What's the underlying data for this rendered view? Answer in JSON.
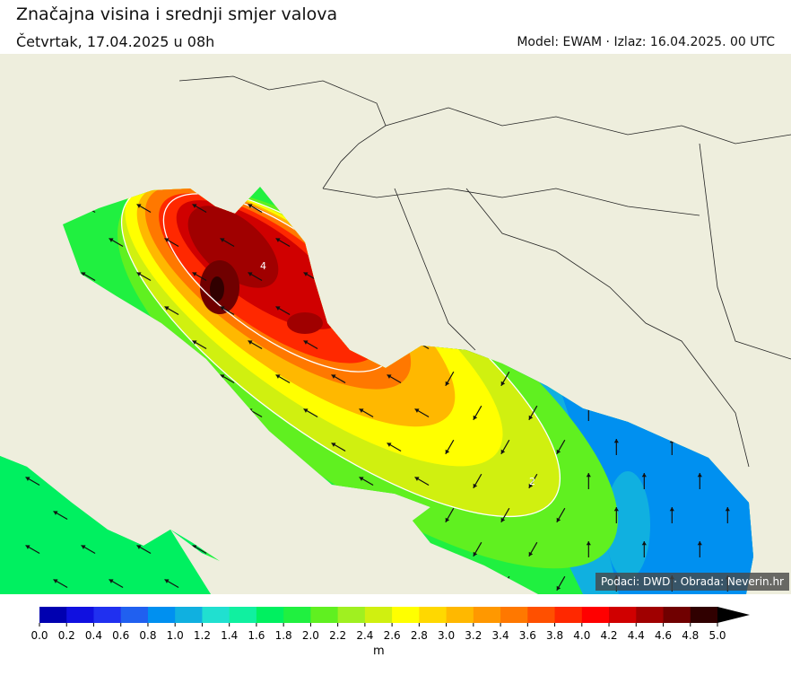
{
  "header": {
    "title": "Značajna visina i srednji smjer valova",
    "date": "Četvrtak, 17.04.2025 u 08h",
    "model": "Model: EWAM · Izlaz: 16.04.2025. 00 UTC"
  },
  "map": {
    "region": "Adriatic Sea",
    "land_color": "#eeeedd",
    "contour_labels": [
      "4",
      "2"
    ],
    "credit": "Podaci: DWD · Obrada: Neverin.hr"
  },
  "colorbar": {
    "unit": "m",
    "ticks": [
      "0.0",
      "0.2",
      "0.4",
      "0.6",
      "0.8",
      "1.0",
      "1.2",
      "1.4",
      "1.6",
      "1.8",
      "2.0",
      "2.2",
      "2.4",
      "2.6",
      "2.8",
      "3.0",
      "3.2",
      "3.4",
      "3.6",
      "3.8",
      "4.0",
      "4.2",
      "4.4",
      "4.6",
      "4.8",
      "5.0"
    ],
    "colors": [
      "#0000b0",
      "#1010e0",
      "#2030f0",
      "#2060f0",
      "#0090f0",
      "#10b0e0",
      "#20e0d0",
      "#10f0a0",
      "#00f060",
      "#20f040",
      "#60f020",
      "#a0f020",
      "#d0f010",
      "#ffff00",
      "#ffd800",
      "#ffb800",
      "#ff9800",
      "#ff7800",
      "#ff5000",
      "#ff2800",
      "#ff0000",
      "#d00000",
      "#a00000",
      "#700000",
      "#300000"
    ],
    "extend_color": "#000000",
    "extend": "max"
  }
}
